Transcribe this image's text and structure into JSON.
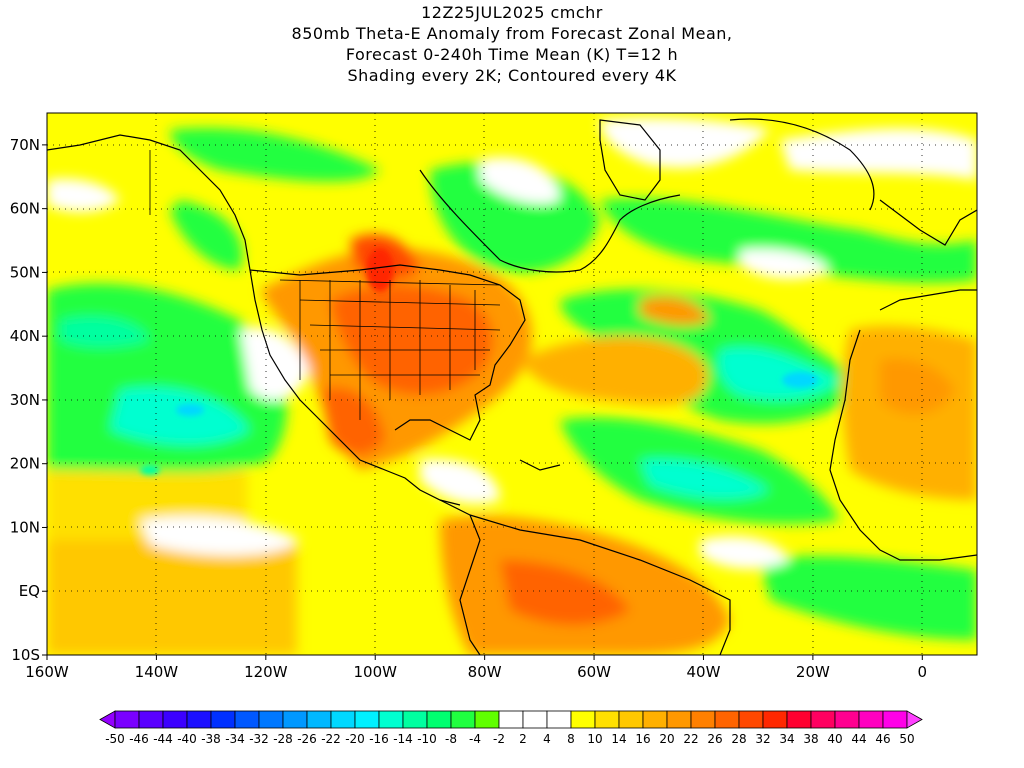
{
  "title": {
    "line1": "12Z25JUL2025 cmchr",
    "line2": "850mb Theta-E Anomaly from Forecast Zonal Mean,",
    "line3": "Forecast 0-240h Time Mean (K) T=12 h",
    "line4": "Shading every 2K; Contoured every 4K"
  },
  "map": {
    "lon_range": [
      -160,
      10
    ],
    "lat_range": [
      -10,
      75
    ],
    "lat_labels": [
      "70N",
      "60N",
      "50N",
      "40N",
      "30N",
      "20N",
      "10N",
      "EQ",
      "10S"
    ],
    "lat_values": [
      70,
      60,
      50,
      40,
      30,
      20,
      10,
      0,
      -10
    ],
    "lon_labels": [
      "160W",
      "140W",
      "120W",
      "100W",
      "80W",
      "60W",
      "40W",
      "20W",
      "0"
    ],
    "lon_values": [
      -160,
      -140,
      -120,
      -100,
      -80,
      -60,
      -40,
      -20,
      0
    ]
  },
  "colorbar": {
    "labels": [
      "-50",
      "-46",
      "-44",
      "-40",
      "-38",
      "-34",
      "-32",
      "-28",
      "-26",
      "-22",
      "-20",
      "-16",
      "-14",
      "-10",
      "-8",
      "-4",
      "-2",
      "2",
      "4",
      "8",
      "10",
      "14",
      "16",
      "20",
      "22",
      "26",
      "28",
      "32",
      "34",
      "38",
      "40",
      "44",
      "46",
      "50"
    ],
    "colors": [
      "#9400ff",
      "#7a00ff",
      "#5a00ff",
      "#3c00ff",
      "#1c10ff",
      "#0030ff",
      "#0058ff",
      "#0078ff",
      "#0098ff",
      "#00b8ff",
      "#00d8ff",
      "#00f0ff",
      "#00ffd0",
      "#00ffa0",
      "#00ff70",
      "#20ff40",
      "#60ff00",
      "#ffffff",
      "#ffffff",
      "#ffffff",
      "#ffff00",
      "#ffe000",
      "#ffc800",
      "#ffb000",
      "#ff9800",
      "#ff8000",
      "#ff6400",
      "#ff4800",
      "#ff2800",
      "#ff0030",
      "#ff0060",
      "#ff0090",
      "#ff00c0",
      "#ff00e8",
      "#ff40ff"
    ]
  }
}
